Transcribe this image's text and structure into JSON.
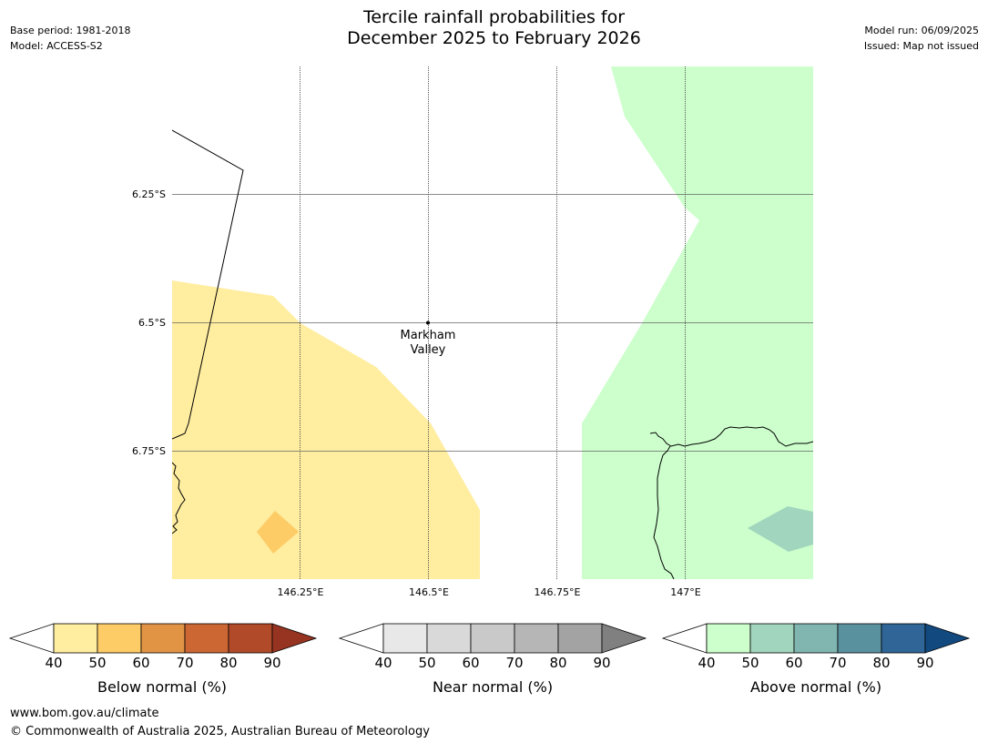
{
  "header": {
    "title_line1": "Tercile rainfall probabilities for",
    "title_line2": "December 2025 to February 2026",
    "base_period": "Base period: 1981-2018",
    "model": "Model: ACCESS-S2",
    "model_run": "Model run: 06/09/2025",
    "issued": "Issued: Map not issued"
  },
  "map": {
    "lat_labels": [
      "6.25°S",
      "6.5°S",
      "6.75°S"
    ],
    "lon_labels": [
      "146.25°E",
      "146.5°E",
      "146.75°E",
      "147°E"
    ],
    "place": {
      "name_line1": "Markham",
      "name_line2": "Valley"
    },
    "regions": [
      {
        "category": "below-normal",
        "band": "40-50",
        "color": "#ffeda0"
      },
      {
        "category": "below-normal",
        "band": "50-60",
        "color": "#fecc66"
      },
      {
        "category": "above-normal",
        "band": "40-50",
        "color": "#ccffcc"
      },
      {
        "category": "above-normal",
        "band": "50-60",
        "color": "#a1d5bd"
      }
    ]
  },
  "colorbars": [
    {
      "label": "Below normal (%)",
      "ticks": [
        "40",
        "50",
        "60",
        "70",
        "80",
        "90"
      ],
      "colors": [
        "#ffeda0",
        "#fecc66",
        "#e29445",
        "#cc6633",
        "#b04a29",
        "#963421"
      ]
    },
    {
      "label": "Near normal (%)",
      "ticks": [
        "40",
        "50",
        "60",
        "70",
        "80",
        "90"
      ],
      "colors": [
        "#e8e8e8",
        "#d9d9d9",
        "#c9c9c9",
        "#b6b6b6",
        "#a3a3a3",
        "#808080"
      ]
    },
    {
      "label": "Above normal (%)",
      "ticks": [
        "40",
        "50",
        "60",
        "70",
        "80",
        "90"
      ],
      "colors": [
        "#ccffcc",
        "#a1d5bd",
        "#80b5b0",
        "#5a919f",
        "#2f6597",
        "#12497f"
      ]
    }
  ],
  "footer": {
    "url": "www.bom.gov.au/climate",
    "copyright": "© Commonwealth of Australia 2025, Australian Bureau of Meteorology"
  }
}
